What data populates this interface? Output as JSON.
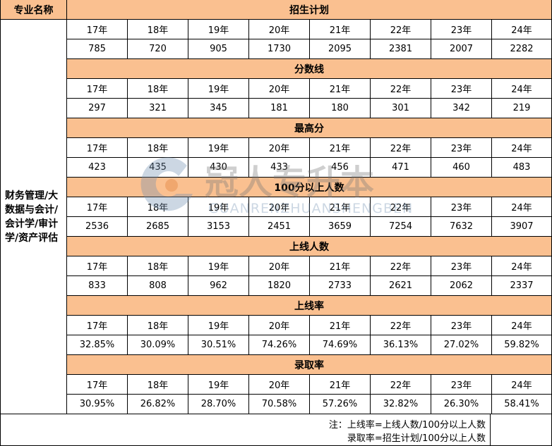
{
  "header": {
    "name_label": "专业名称"
  },
  "major": "财务管理/大数据与会计/会计学/审计学/资产评估",
  "years": [
    "17年",
    "18年",
    "19年",
    "20年",
    "21年",
    "22年",
    "23年",
    "24年"
  ],
  "sections": [
    {
      "title": "招生计划",
      "values": [
        785,
        720,
        905,
        1730,
        2095,
        2381,
        2007,
        2282
      ]
    },
    {
      "title": "分数线",
      "values": [
        297,
        321,
        345,
        181,
        180,
        301,
        342,
        219
      ]
    },
    {
      "title": "最高分",
      "values": [
        423,
        435,
        430,
        433,
        456,
        471,
        460,
        483
      ]
    },
    {
      "title": "100分以上人数",
      "values": [
        2536,
        2685,
        3153,
        2451,
        3659,
        7254,
        7632,
        3907
      ]
    },
    {
      "title": "上线人数",
      "values": [
        833,
        808,
        962,
        1820,
        2733,
        2621,
        2062,
        2337
      ]
    },
    {
      "title": "上线率",
      "values": [
        "32.85%",
        "30.09%",
        "30.51%",
        "74.26%",
        "74.69%",
        "36.13%",
        "27.02%",
        "59.82%"
      ]
    },
    {
      "title": "录取率",
      "values": [
        "30.95%",
        "26.82%",
        "28.70%",
        "70.58%",
        "57.26%",
        "32.82%",
        "26.30%",
        "58.41%"
      ]
    }
  ],
  "notes": [
    "注：上线率=上线人数/100分以上人数",
    "录取率=招生计划/100分以上人数"
  ],
  "watermark": {
    "brand": "冠人专升本",
    "pinyin": "GUANRENZHUANSHENGBEN"
  }
}
